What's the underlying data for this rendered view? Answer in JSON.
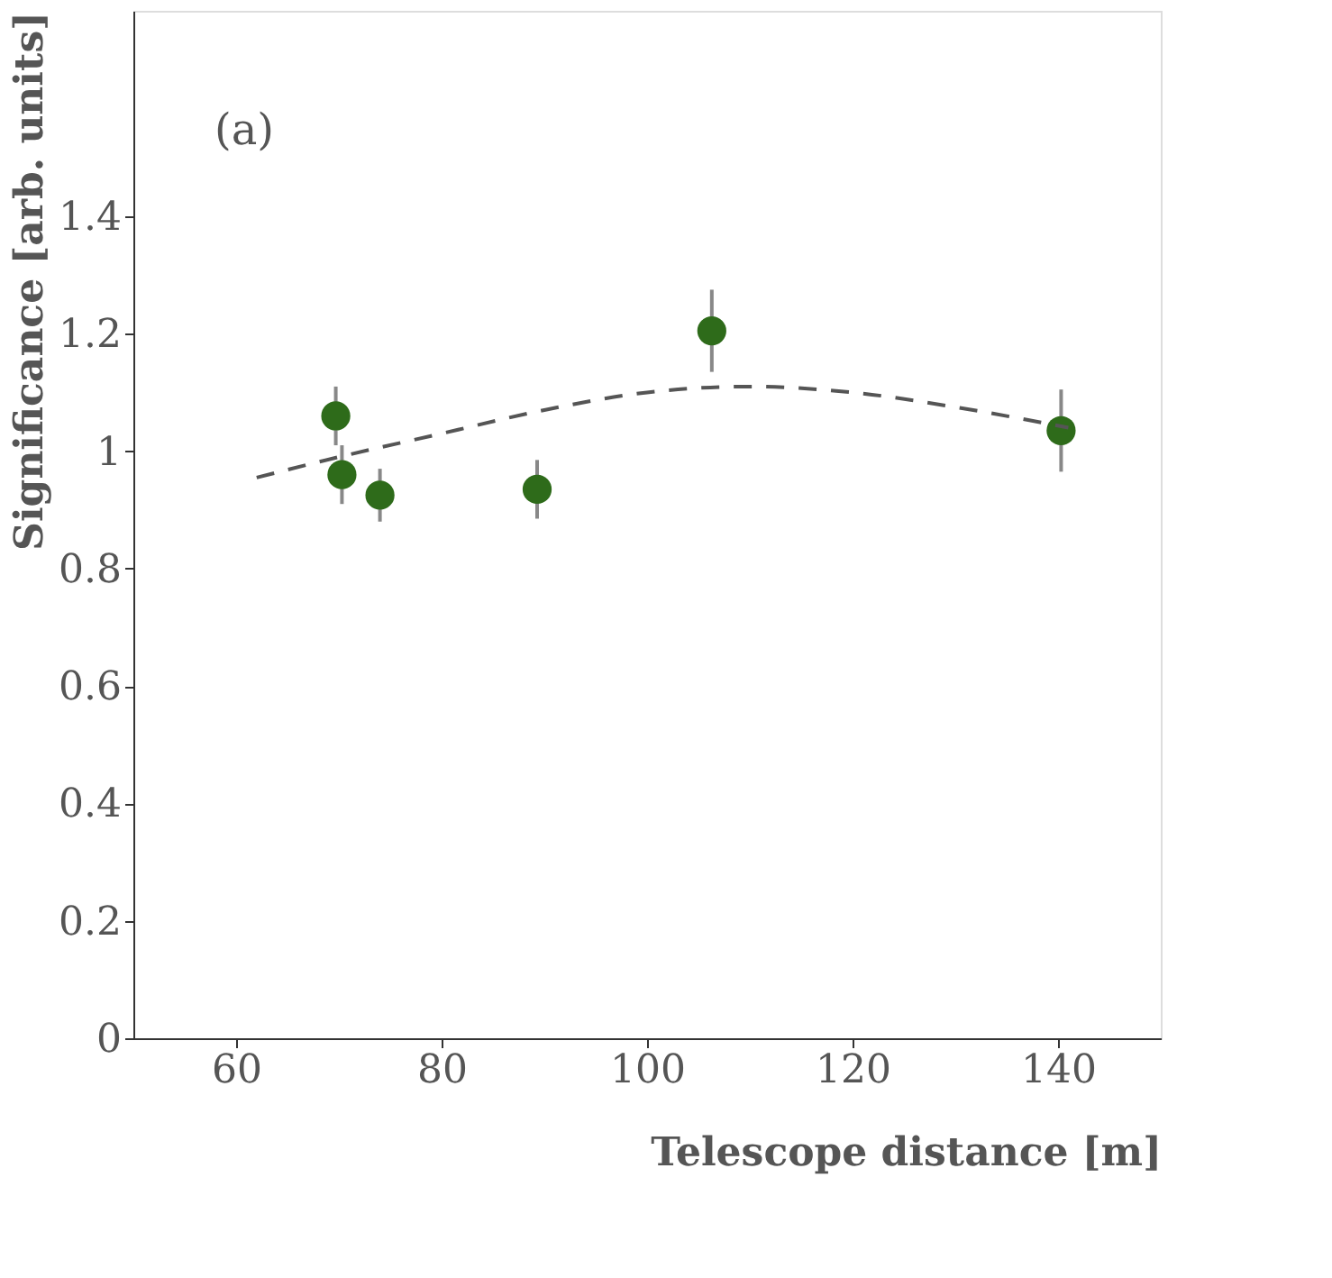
{
  "chart_data": {
    "type": "scatter",
    "xlabel": "Telescope distance [m]",
    "ylabel": "Significance [arb. units]",
    "annotations": [
      "(a)"
    ],
    "xlim": [
      50,
      150
    ],
    "xticks": [
      60,
      80,
      100,
      120,
      140
    ],
    "ylim": [
      0,
      1.75
    ],
    "yticks": [
      0,
      0.2,
      0.4,
      0.6,
      0.8,
      1,
      1.2,
      1.4
    ],
    "grid": false,
    "marker": "circle",
    "series": [
      {
        "color": "#2e6b1a",
        "x": [
          69.7,
          70.3,
          74,
          89.3,
          106.3,
          140.3
        ],
        "values": [
          1.06,
          0.96,
          0.925,
          0.935,
          1.205,
          1.035
        ],
        "errors": [
          0.05,
          0.05,
          0.045,
          0.05,
          0.07,
          0.07
        ]
      },
      {
        "type": "line",
        "color": "#555555",
        "line_style": "dashed",
        "marker": "none",
        "x": [
          62,
          70,
          80,
          90,
          100,
          110,
          120,
          130,
          141
        ],
        "values": [
          0.955,
          0.99,
          1.03,
          1.07,
          1.1,
          1.11,
          1.1,
          1.075,
          1.04
        ]
      }
    ]
  }
}
